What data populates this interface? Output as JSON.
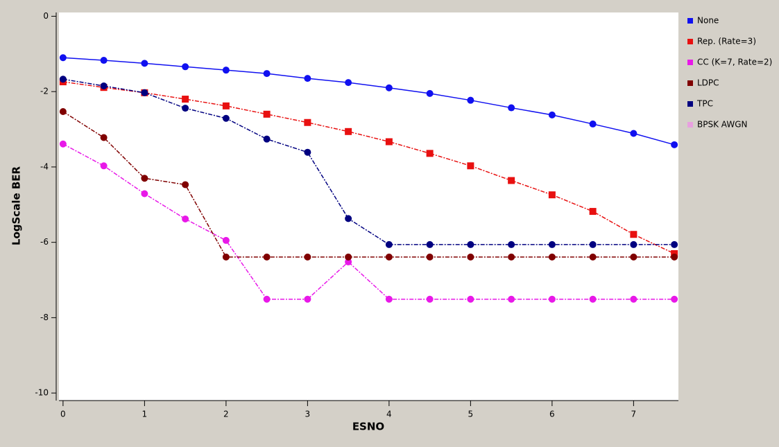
{
  "chart_data": {
    "type": "line",
    "xlabel": "ESNO",
    "ylabel": "LogScale BER",
    "x": [
      0,
      0.5,
      1,
      1.5,
      2,
      2.5,
      3,
      3.5,
      4,
      4.5,
      5,
      5.5,
      6,
      6.5,
      7,
      7.5
    ],
    "xlim": [
      -0.05,
      7.55
    ],
    "xticks": [
      0,
      1,
      2,
      3,
      4,
      5,
      6,
      7
    ],
    "ylim": [
      -10.2,
      0.1
    ],
    "yticks": [
      0,
      -2,
      -4,
      -6,
      -8,
      -10
    ],
    "legend": "right",
    "series": [
      {
        "name": "None",
        "color": "#1010f0",
        "style": "solid",
        "values": [
          -1.1,
          -1.17,
          -1.25,
          -1.34,
          -1.43,
          -1.52,
          -1.65,
          -1.76,
          -1.9,
          -2.05,
          -2.23,
          -2.43,
          -2.62,
          -2.86,
          -3.11,
          -3.41
        ]
      },
      {
        "name": "Rep. (Rate=3)",
        "color": "#e81010",
        "style": "dashdot",
        "values": [
          -1.74,
          -1.89,
          -2.03,
          -2.2,
          -2.38,
          -2.6,
          -2.82,
          -3.06,
          -3.33,
          -3.64,
          -3.97,
          -4.36,
          -4.74,
          -5.18,
          -5.79,
          -6.3
        ]
      },
      {
        "name": "CC (K=7, Rate=2)",
        "color": "#e818e8",
        "style": "dashdot",
        "values": [
          -3.39,
          -3.97,
          -4.71,
          -5.38,
          -5.95,
          -7.51,
          -7.51,
          -6.52,
          -7.51,
          -7.51,
          -7.51,
          -7.51,
          -7.51,
          -7.51,
          -7.51,
          -7.51
        ]
      },
      {
        "name": "LDPC",
        "color": "#800000",
        "style": "dashdot",
        "values": [
          -2.53,
          -3.22,
          -4.3,
          -4.47,
          -6.39,
          -6.39,
          -6.39,
          -6.39,
          -6.39,
          -6.39,
          -6.39,
          -6.39,
          -6.39,
          -6.39,
          -6.39,
          -6.39
        ]
      },
      {
        "name": "TPC",
        "color": "#000080",
        "style": "dashdot",
        "values": [
          -1.67,
          -1.85,
          -2.03,
          -2.44,
          -2.71,
          -3.26,
          -3.61,
          -5.37,
          -6.06,
          -6.06,
          -6.06,
          -6.06,
          -6.06,
          -6.06,
          -6.06,
          -6.06
        ]
      },
      {
        "name": "BPSK AWGN",
        "color": "#e8a0e0",
        "style": "dashdot",
        "values": [
          null,
          null,
          null,
          null,
          null,
          null,
          null,
          null,
          null,
          null,
          null,
          null,
          null,
          null,
          null,
          null
        ]
      }
    ]
  }
}
